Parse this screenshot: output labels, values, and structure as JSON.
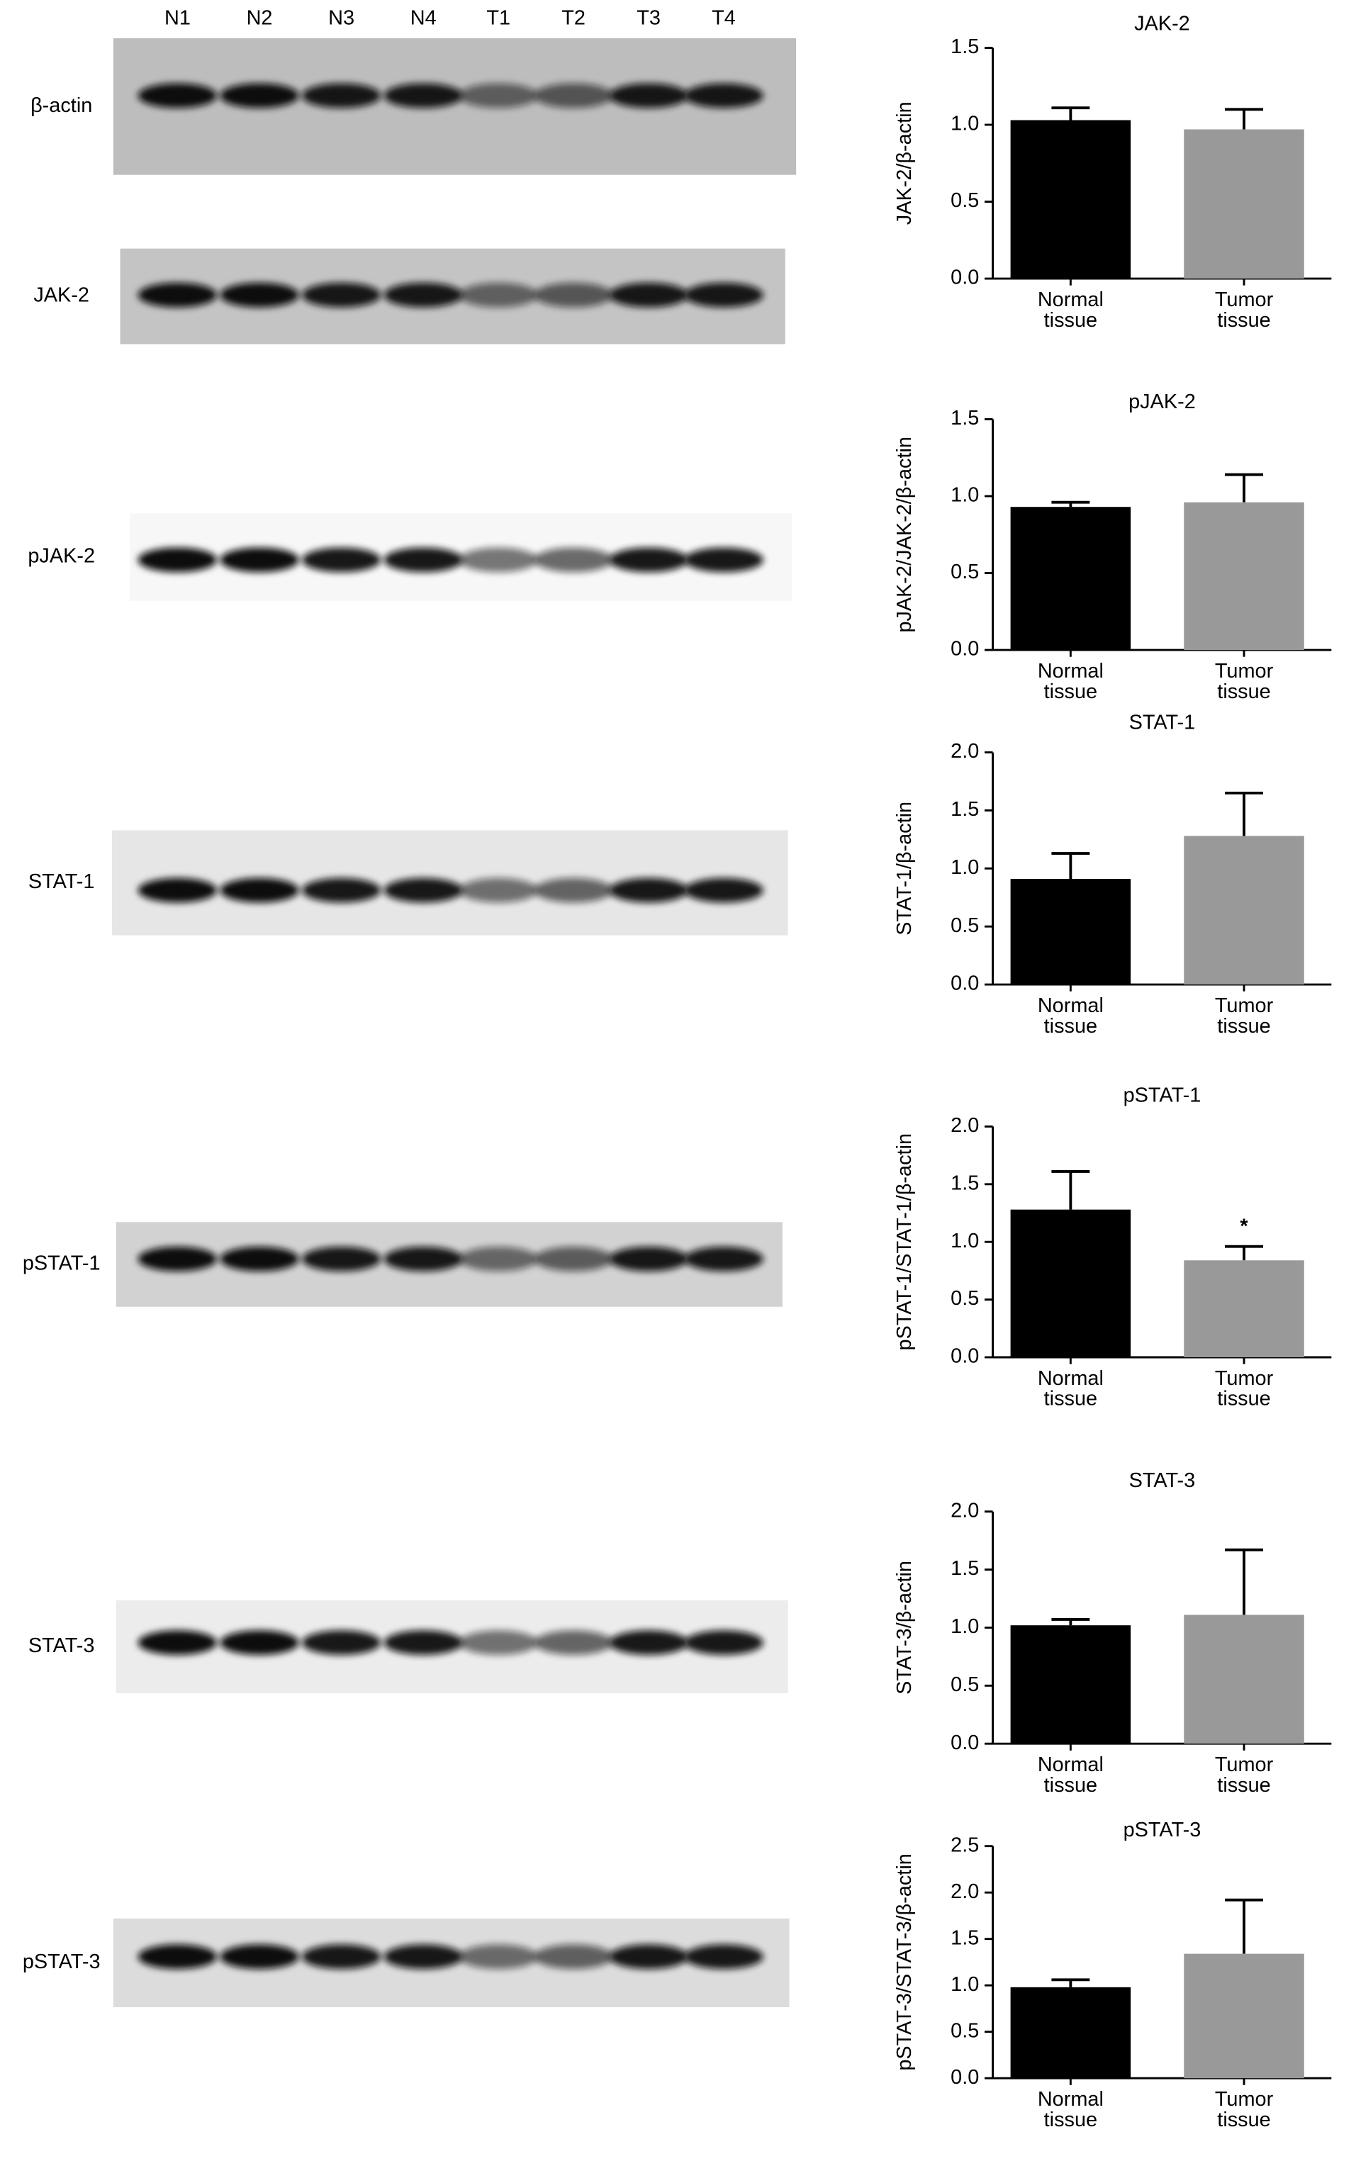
{
  "lanes": [
    "N1",
    "N2",
    "N3",
    "N4",
    "T1",
    "T2",
    "T3",
    "T4"
  ],
  "blots": [
    {
      "label": "β-actin"
    },
    {
      "label": "JAK-2"
    },
    {
      "label": "pJAK-2"
    },
    {
      "label": "STAT-1"
    },
    {
      "label": "pSTAT-1"
    },
    {
      "label": "STAT-3"
    },
    {
      "label": "pSTAT-3"
    }
  ],
  "chart_data": [
    {
      "type": "bar",
      "title": "JAK-2",
      "ylabel": "JAK-2/β-actin",
      "categories": [
        "Normal tissue",
        "Tumor tissue"
      ],
      "values": [
        1.03,
        0.97
      ],
      "errors": [
        0.08,
        0.13
      ],
      "colors": [
        "#000000",
        "#999999"
      ],
      "ylim": [
        0,
        1.5
      ],
      "yticks": [
        {
          "value": 0,
          "label": "0.0"
        },
        0.5,
        {
          "value": 1,
          "label": "1.0"
        },
        1.5
      ]
    },
    {
      "type": "bar",
      "title": "pJAK-2",
      "ylabel": "pJAK-2/JAK-2/β-actin",
      "categories": [
        "Normal tissue",
        "Tumor tissue"
      ],
      "values": [
        0.93,
        0.96
      ],
      "errors": [
        0.03,
        0.18
      ],
      "colors": [
        "#000000",
        "#999999"
      ],
      "ylim": [
        0,
        1.5
      ],
      "yticks": [
        {
          "value": 0,
          "label": "0.0"
        },
        0.5,
        {
          "value": 1,
          "label": "1.0"
        },
        1.5
      ]
    },
    {
      "type": "bar",
      "title": "STAT-1",
      "ylabel": "STAT-1/β-actin",
      "categories": [
        "Normal tissue",
        "Tumor tissue"
      ],
      "values": [
        0.91,
        1.28
      ],
      "errors": [
        0.22,
        0.37
      ],
      "colors": [
        "#000000",
        "#999999"
      ],
      "ylim": [
        0,
        2
      ],
      "yticks": [
        {
          "value": 0,
          "label": "0.0"
        },
        0.5,
        {
          "value": 1,
          "label": "1.0"
        },
        1.5,
        {
          "value": 2,
          "label": "2.0"
        }
      ]
    },
    {
      "type": "bar",
      "title": "pSTAT-1",
      "ylabel": "pSTAT-1/STAT-1/β-actin",
      "categories": [
        "Normal tissue",
        "Tumor tissue"
      ],
      "values": [
        1.28,
        0.84
      ],
      "errors": [
        0.33,
        0.12
      ],
      "colors": [
        "#000000",
        "#999999"
      ],
      "ylim": [
        0,
        2
      ],
      "yticks": [
        {
          "value": 0,
          "label": "0.0"
        },
        0.5,
        {
          "value": 1,
          "label": "1.0"
        },
        1.5,
        {
          "value": 2,
          "label": "2.0"
        }
      ],
      "annotations": [
        {
          "text": "*",
          "x": "Tumor tissue"
        }
      ]
    },
    {
      "type": "bar",
      "title": "STAT-3",
      "ylabel": "STAT-3/β-actin",
      "categories": [
        "Normal tissue",
        "Tumor tissue"
      ],
      "values": [
        1.02,
        1.11
      ],
      "errors": [
        0.05,
        0.56
      ],
      "colors": [
        "#000000",
        "#999999"
      ],
      "ylim": [
        0,
        2
      ],
      "yticks": [
        {
          "value": 0,
          "label": "0.0"
        },
        0.5,
        {
          "value": 1,
          "label": "1.0"
        },
        1.5,
        {
          "value": 2,
          "label": "2.0"
        }
      ]
    },
    {
      "type": "bar",
      "title": "pSTAT-3",
      "ylabel": "pSTAT-3/STAT-3/β-actin",
      "categories": [
        "Normal tissue",
        "Tumor tissue"
      ],
      "values": [
        0.98,
        1.34
      ],
      "errors": [
        0.08,
        0.58
      ],
      "colors": [
        "#000000",
        "#999999"
      ],
      "ylim": [
        0,
        2.5
      ],
      "yticks": [
        {
          "value": 0,
          "label": "0.0"
        },
        0.5,
        {
          "value": 1,
          "label": "1.0"
        },
        1.5,
        {
          "value": 2,
          "label": "2.0"
        },
        2.5
      ]
    }
  ]
}
